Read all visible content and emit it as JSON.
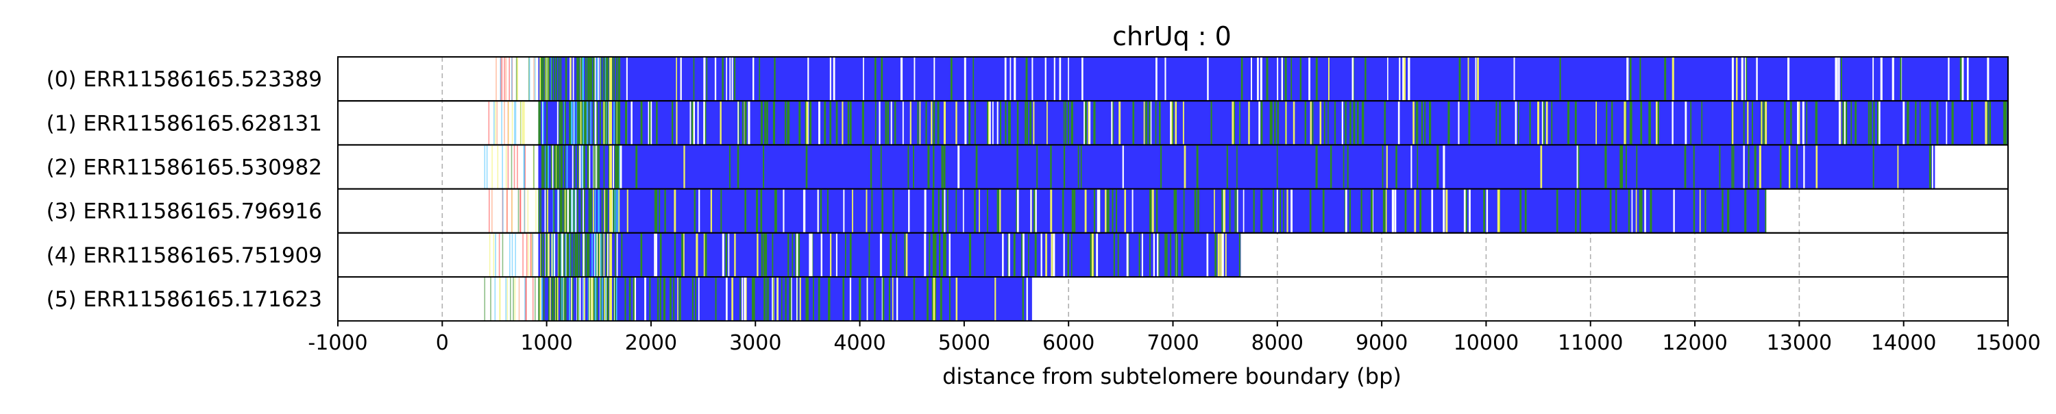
{
  "chart_data": {
    "type": "heatmap",
    "title": "chrUq : 0",
    "xlabel": "distance from subtelomere boundary (bp)",
    "ylabel": "",
    "xlim": [
      -1000,
      15000
    ],
    "xticks": [
      -1000,
      0,
      1000,
      2000,
      3000,
      4000,
      5000,
      6000,
      7000,
      8000,
      9000,
      10000,
      11000,
      12000,
      13000,
      14000,
      15000
    ],
    "xtick_labels": [
      "-1000",
      "0",
      "1000",
      "2000",
      "3000",
      "4000",
      "5000",
      "6000",
      "7000",
      "8000",
      "9000",
      "10000",
      "11000",
      "12000",
      "13000",
      "14000",
      "15000"
    ],
    "grid": "vertical dashed",
    "colors": {
      "main": "#3333ff",
      "gap": "#ffffff",
      "green": "#2e8b22",
      "yellow": "#f0f060",
      "cyan": "#40c0ff",
      "orange": "#ff9060",
      "red": "#ff4040",
      "frame": "#000000",
      "grid": "#b0b0b0"
    },
    "reads": [
      {
        "label": "(0) ERR11586165.523389",
        "start": 400,
        "end": 15000,
        "dense_end": 1000,
        "green_density": 0.03,
        "yellow_density": 0.005,
        "white_density": 0.06
      },
      {
        "label": "(1) ERR11586165.628131",
        "start": 400,
        "end": 15000,
        "dense_end": 1000,
        "green_density": 0.14,
        "yellow_density": 0.04,
        "white_density": 0.03
      },
      {
        "label": "(2) ERR11586165.530982",
        "start": 400,
        "end": 14300,
        "dense_end": 1000,
        "green_density": 0.05,
        "yellow_density": 0.01,
        "white_density": 0.015
      },
      {
        "label": "(3) ERR11586165.796916",
        "start": 400,
        "end": 12680,
        "dense_end": 1000,
        "green_density": 0.1,
        "yellow_density": 0.02,
        "white_density": 0.04
      },
      {
        "label": "(4) ERR11586165.751909",
        "start": 400,
        "end": 7650,
        "dense_end": 1000,
        "green_density": 0.12,
        "yellow_density": 0.03,
        "white_density": 0.05
      },
      {
        "label": "(5) ERR11586165.171623",
        "start": 400,
        "end": 5650,
        "dense_end": 1000,
        "green_density": 0.16,
        "yellow_density": 0.03,
        "white_density": 0.06
      }
    ]
  }
}
